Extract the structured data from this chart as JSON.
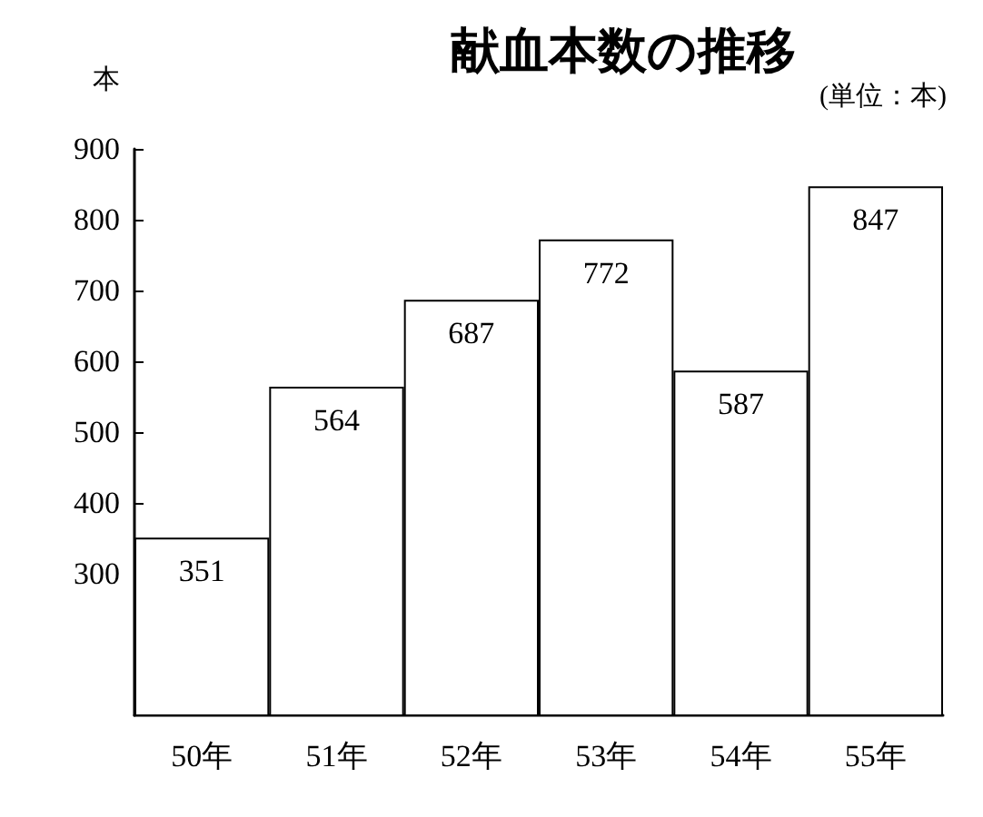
{
  "chart_data": {
    "type": "bar",
    "title": "献血本数の推移",
    "ylabel": "本",
    "annotations": [
      "(単位：本)"
    ],
    "categories": [
      "50年",
      "51年",
      "52年",
      "53年",
      "54年",
      "55年"
    ],
    "values": [
      351,
      564,
      687,
      772,
      587,
      847
    ],
    "color": "#ffffff",
    "ylim": [
      100,
      900
    ],
    "yticks": [
      300,
      400,
      500,
      600,
      700,
      800,
      900
    ],
    "data_labels": true
  }
}
